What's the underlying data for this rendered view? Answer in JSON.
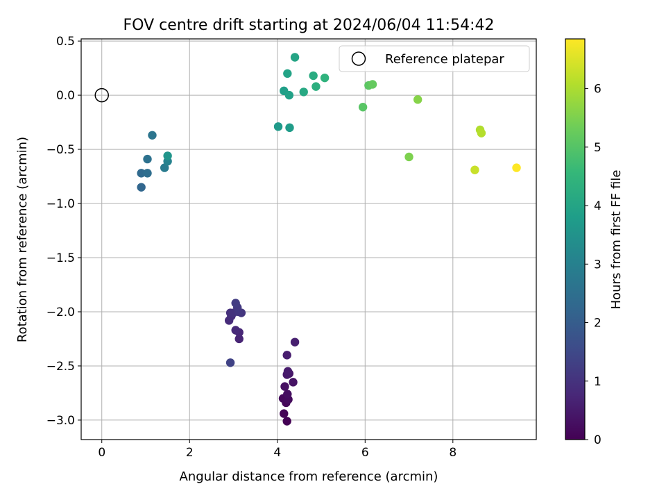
{
  "chart_data": {
    "type": "scatter",
    "title": "FOV centre drift starting at 2024/06/04 11:54:42",
    "xlabel": "Angular distance from reference (arcmin)",
    "ylabel": "Rotation from reference (arcmin)",
    "xlim": [
      -0.47,
      9.9
    ],
    "ylim": [
      -3.18,
      0.52
    ],
    "xticks": [
      0,
      2,
      4,
      6,
      8
    ],
    "yticks": [
      0.5,
      0.0,
      -0.5,
      -1.0,
      -1.5,
      -2.0,
      -2.5,
      -3.0
    ],
    "xtick_labels": [
      "0",
      "2",
      "4",
      "6",
      "8"
    ],
    "ytick_labels": [
      "0.5",
      "0.0",
      "−0.5",
      "−1.0",
      "−1.5",
      "−2.0",
      "−2.5",
      "−3.0"
    ],
    "grid": true,
    "legend": {
      "placement": "top-right",
      "entries": [
        {
          "label": "Reference platepar",
          "x": 0,
          "y": 0,
          "marker": "open-circle"
        }
      ]
    },
    "colorbar": {
      "label": "Hours from first FF file",
      "range": [
        0,
        6.85
      ],
      "ticks": [
        0,
        1,
        2,
        3,
        4,
        5,
        6
      ],
      "colormap": "viridis"
    },
    "series": [
      {
        "points": [
          {
            "x": 4.22,
            "y": -3.01,
            "c": 0.0
          },
          {
            "x": 4.15,
            "y": -2.94,
            "c": 0.05
          },
          {
            "x": 4.2,
            "y": -2.84,
            "c": 0.1
          },
          {
            "x": 4.13,
            "y": -2.8,
            "c": 0.15
          },
          {
            "x": 4.25,
            "y": -2.81,
            "c": 0.2
          },
          {
            "x": 4.23,
            "y": -2.76,
            "c": 0.25
          },
          {
            "x": 4.17,
            "y": -2.69,
            "c": 0.3
          },
          {
            "x": 4.36,
            "y": -2.65,
            "c": 0.35
          },
          {
            "x": 4.27,
            "y": -2.57,
            "c": 0.4
          },
          {
            "x": 4.22,
            "y": -2.58,
            "c": 0.45
          },
          {
            "x": 4.24,
            "y": -2.55,
            "c": 0.5
          },
          {
            "x": 4.22,
            "y": -2.4,
            "c": 0.55
          },
          {
            "x": 4.4,
            "y": -2.28,
            "c": 0.6
          },
          {
            "x": 3.13,
            "y": -2.25,
            "c": 0.7
          },
          {
            "x": 3.13,
            "y": -2.19,
            "c": 0.75
          },
          {
            "x": 3.05,
            "y": -2.17,
            "c": 0.8
          },
          {
            "x": 2.9,
            "y": -2.08,
            "c": 0.85
          },
          {
            "x": 2.95,
            "y": -2.04,
            "c": 0.9
          },
          {
            "x": 2.93,
            "y": -2.01,
            "c": 0.95
          },
          {
            "x": 3.0,
            "y": -2.01,
            "c": 1.0
          },
          {
            "x": 3.18,
            "y": -2.01,
            "c": 1.05
          },
          {
            "x": 3.12,
            "y": -2.0,
            "c": 1.1
          },
          {
            "x": 3.09,
            "y": -1.96,
            "c": 1.15
          },
          {
            "x": 3.05,
            "y": -1.92,
            "c": 1.2
          },
          {
            "x": 2.93,
            "y": -2.47,
            "c": 1.35
          },
          {
            "x": 0.9,
            "y": -0.85,
            "c": 2.25
          },
          {
            "x": 0.9,
            "y": -0.72,
            "c": 2.35
          },
          {
            "x": 1.04,
            "y": -0.72,
            "c": 2.45
          },
          {
            "x": 1.04,
            "y": -0.59,
            "c": 2.55
          },
          {
            "x": 1.15,
            "y": -0.37,
            "c": 2.65
          },
          {
            "x": 1.43,
            "y": -0.67,
            "c": 2.85
          },
          {
            "x": 1.5,
            "y": -0.61,
            "c": 3.05
          },
          {
            "x": 1.5,
            "y": -0.56,
            "c": 3.55
          },
          {
            "x": 4.02,
            "y": -0.29,
            "c": 3.7
          },
          {
            "x": 4.28,
            "y": -0.3,
            "c": 3.75
          },
          {
            "x": 4.15,
            "y": 0.04,
            "c": 3.85
          },
          {
            "x": 4.27,
            "y": 0.0,
            "c": 3.9
          },
          {
            "x": 4.23,
            "y": 0.2,
            "c": 3.95
          },
          {
            "x": 4.4,
            "y": 0.35,
            "c": 4.0
          },
          {
            "x": 4.6,
            "y": 0.03,
            "c": 4.1
          },
          {
            "x": 4.82,
            "y": 0.18,
            "c": 4.2
          },
          {
            "x": 4.88,
            "y": 0.08,
            "c": 4.3
          },
          {
            "x": 5.08,
            "y": 0.16,
            "c": 4.4
          },
          {
            "x": 5.95,
            "y": -0.11,
            "c": 5.05
          },
          {
            "x": 6.08,
            "y": 0.09,
            "c": 5.1
          },
          {
            "x": 6.17,
            "y": 0.1,
            "c": 5.2
          },
          {
            "x": 7.0,
            "y": -0.57,
            "c": 5.5
          },
          {
            "x": 7.2,
            "y": -0.04,
            "c": 5.6
          },
          {
            "x": 8.62,
            "y": -0.32,
            "c": 6.05
          },
          {
            "x": 8.65,
            "y": -0.35,
            "c": 6.1
          },
          {
            "x": 8.5,
            "y": -0.69,
            "c": 6.3
          },
          {
            "x": 9.45,
            "y": -0.67,
            "c": 6.85
          }
        ]
      }
    ]
  }
}
